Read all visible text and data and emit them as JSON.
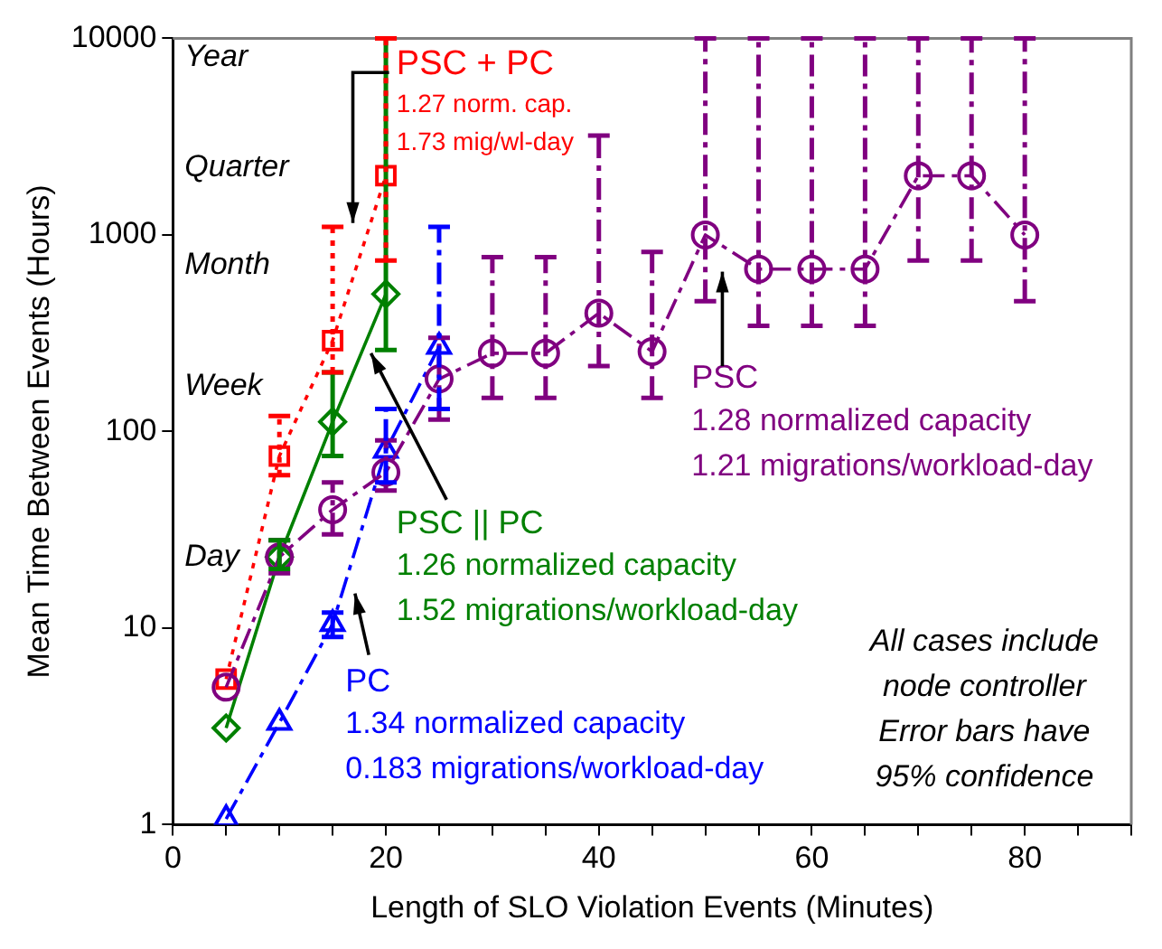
{
  "chart_data": {
    "type": "line",
    "xlabel": "Length of SLO Violation Events (Minutes)",
    "ylabel": "Mean Time Between Events (Hours)",
    "log": "y",
    "xlim": [
      0,
      90
    ],
    "ylim": [
      1,
      10000
    ],
    "xticks": [
      0,
      {
        "value": 5,
        "label": null
      },
      {
        "value": 10,
        "label": null
      },
      {
        "value": 15,
        "label": null
      },
      20,
      {
        "value": 25,
        "label": null
      },
      {
        "value": 30,
        "label": null
      },
      {
        "value": 35,
        "label": null
      },
      40,
      {
        "value": 45,
        "label": null
      },
      {
        "value": 50,
        "label": null
      },
      {
        "value": 55,
        "label": null
      },
      60,
      {
        "value": 65,
        "label": null
      },
      {
        "value": 70,
        "label": null
      },
      {
        "value": 75,
        "label": null
      },
      80,
      {
        "value": 85,
        "label": null
      },
      {
        "value": 90,
        "label": null
      }
    ],
    "yticks": [
      1,
      10,
      100,
      1000,
      10000
    ],
    "legend": false,
    "series": [
      {
        "name": "PSC",
        "color": "#800080",
        "marker": "circle",
        "line_style": "dashed",
        "x": [
          5,
          10,
          15,
          20,
          25,
          30,
          35,
          40,
          45,
          50,
          55,
          60,
          65,
          70,
          75,
          80
        ],
        "values": [
          5,
          23,
          40,
          62,
          185,
          250,
          250,
          400,
          255,
          1000,
          670,
          670,
          670,
          2000,
          2000,
          1000
        ],
        "errors": [
          null,
          [
            19,
            28
          ],
          [
            30,
            55
          ],
          [
            50,
            90
          ],
          [
            115,
            300
          ],
          [
            148,
            770
          ],
          [
            148,
            770
          ],
          [
            215,
            3200
          ],
          [
            148,
            820
          ],
          [
            460,
            10000
          ],
          [
            345,
            10000
          ],
          [
            345,
            10000
          ],
          [
            345,
            10000
          ],
          [
            740,
            10000
          ],
          [
            740,
            10000
          ],
          [
            460,
            10000
          ]
        ]
      },
      {
        "name": "PC",
        "color": "#0000ff",
        "marker": "triangle",
        "line_style": "dashed",
        "x": [
          5,
          10,
          15,
          20,
          25
        ],
        "values": [
          1.07,
          3.3,
          10.5,
          80,
          270
        ],
        "errors": [
          null,
          null,
          [
            9,
            12
          ],
          [
            55,
            130
          ],
          [
            130,
            1100
          ]
        ]
      },
      {
        "name": "PSC || PC",
        "color": "#008000",
        "marker": "diamond",
        "line_style": "solid",
        "x": [
          5,
          10,
          15,
          20
        ],
        "values": [
          3.1,
          23,
          112,
          500
        ],
        "errors": [
          null,
          [
            20,
            28
          ],
          [
            75,
            200
          ],
          [
            260,
            10000
          ]
        ]
      },
      {
        "name": "PSC + PC",
        "color": "#ff0000",
        "marker": "square",
        "line_style": "dotted",
        "x": [
          5,
          10,
          15,
          20
        ],
        "values": [
          5.5,
          75,
          290,
          2000
        ],
        "errors": [
          null,
          [
            60,
            120
          ],
          [
            200,
            1100
          ],
          [
            740,
            10000
          ]
        ]
      }
    ],
    "annotations": [
      "Year",
      "Quarter",
      "Month",
      "Week",
      "Day",
      "1.27 norm. cap.",
      "1.73 mig/wl-day",
      "1.26 normalized capacity",
      "1.52 migrations/workload-day",
      "1.34 normalized capacity",
      "0.183 migrations/workload-day",
      "1.28 normalized capacity",
      "1.21 migrations/workload-day",
      "All cases include",
      "node controller",
      "Error bars have",
      "95% confidence"
    ]
  }
}
